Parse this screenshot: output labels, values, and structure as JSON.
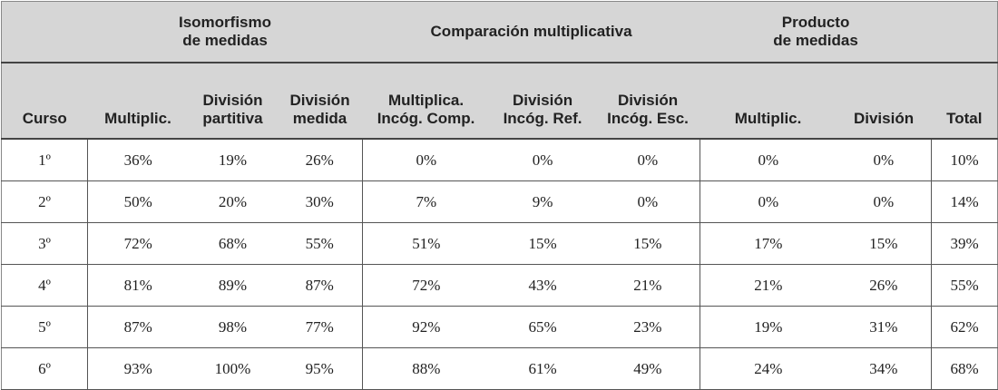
{
  "groups": {
    "isomorfismo": "Isomorfismo\nde medidas",
    "comparacion": "Comparación multiplicativa",
    "producto": "Producto\nde medidas"
  },
  "columns": [
    "Curso",
    "Multiplic.",
    "División\npartitiva",
    "División\nmedida",
    "Multiplica.\nIncóg. Comp.",
    "División\nIncóg. Ref.",
    "División\nIncóg. Esc.",
    "Multiplic.",
    "División",
    "Total"
  ],
  "rows": [
    [
      "1º",
      "36%",
      "19%",
      "26%",
      "0%",
      "0%",
      "0%",
      "0%",
      "0%",
      "10%"
    ],
    [
      "2º",
      "50%",
      "20%",
      "30%",
      "7%",
      "9%",
      "0%",
      "0%",
      "0%",
      "14%"
    ],
    [
      "3º",
      "72%",
      "68%",
      "55%",
      "51%",
      "15%",
      "15%",
      "17%",
      "15%",
      "39%"
    ],
    [
      "4º",
      "81%",
      "89%",
      "87%",
      "72%",
      "43%",
      "21%",
      "21%",
      "26%",
      "55%"
    ],
    [
      "5º",
      "87%",
      "98%",
      "77%",
      "92%",
      "65%",
      "23%",
      "19%",
      "31%",
      "62%"
    ],
    [
      "6º",
      "93%",
      "100%",
      "95%",
      "88%",
      "61%",
      "49%",
      "24%",
      "34%",
      "68%"
    ]
  ]
}
